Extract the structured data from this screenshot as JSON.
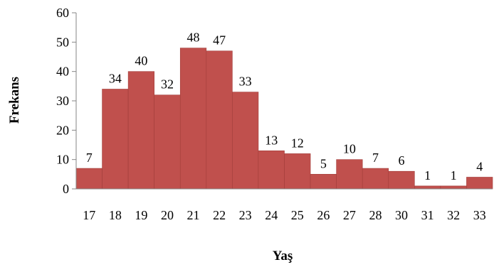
{
  "chart_data": {
    "type": "bar",
    "title": "",
    "xlabel": "Yaş",
    "ylabel": "Frekans",
    "categories": [
      "17",
      "18",
      "19",
      "20",
      "21",
      "22",
      "23",
      "24",
      "25",
      "26",
      "27",
      "28",
      "30",
      "31",
      "32",
      "33"
    ],
    "values": [
      7,
      34,
      40,
      32,
      48,
      47,
      33,
      13,
      12,
      5,
      10,
      7,
      6,
      1,
      1,
      4
    ],
    "ylim": [
      0,
      60
    ],
    "yticks": [
      0,
      10,
      20,
      30,
      40,
      50,
      60
    ],
    "grid": false,
    "legend": "none",
    "bar_color": "#c0504d",
    "bar_edge_color": "#a23e3b"
  }
}
